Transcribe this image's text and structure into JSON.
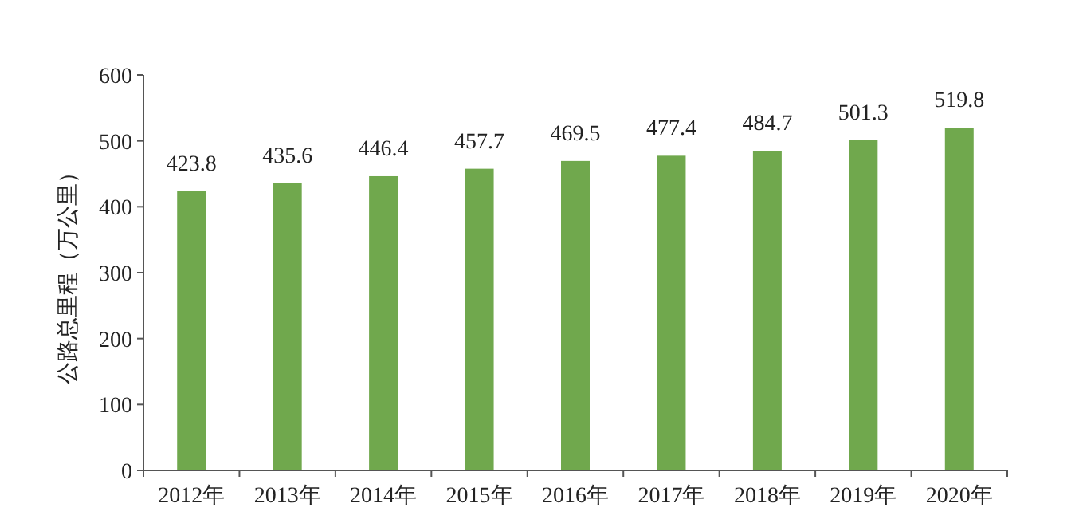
{
  "chart_data": {
    "type": "bar",
    "ylabel": "公路总里程（万公里）",
    "categories": [
      "2012年",
      "2013年",
      "2014年",
      "2015年",
      "2016年",
      "2017年",
      "2018年",
      "2019年",
      "2020年"
    ],
    "values": [
      423.8,
      435.6,
      446.4,
      457.7,
      469.5,
      477.4,
      484.7,
      501.3,
      519.8
    ],
    "color": "#70a84d",
    "ylim": [
      0,
      600
    ],
    "yticks": [
      0,
      100,
      200,
      300,
      400,
      500,
      600
    ],
    "data_labels": true
  }
}
